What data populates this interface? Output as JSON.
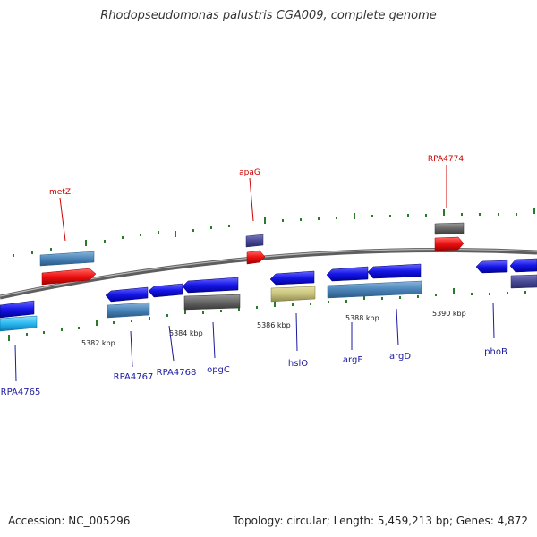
{
  "title": "Rhodopseudomonas palustris CGA009, complete genome",
  "accession": "Accession: NC_005296",
  "stats": "Topology: circular; Length: 5,459,213 bp; Genes: 4,872",
  "colors": {
    "red": "#ee1c1c",
    "blue": "#1a1ae0",
    "steel": "#4a84b8",
    "grey": "#666666",
    "purple": "#4a4a96",
    "khaki": "#c8c27c",
    "cyan": "#2ab8f0",
    "tick": "#2a7a2a"
  },
  "scale_labels": [
    "5382 kbp",
    "5384 kbp",
    "5386 kbp",
    "5388 kbp",
    "5390 kbp"
  ],
  "gene_labels_top": [
    "metZ",
    "apaG",
    "RPA4774"
  ],
  "gene_labels_bottom": [
    "RPA4765",
    "RPA4767",
    "RPA4768",
    "opgC",
    "hslO",
    "argF",
    "argD",
    "phoB"
  ]
}
